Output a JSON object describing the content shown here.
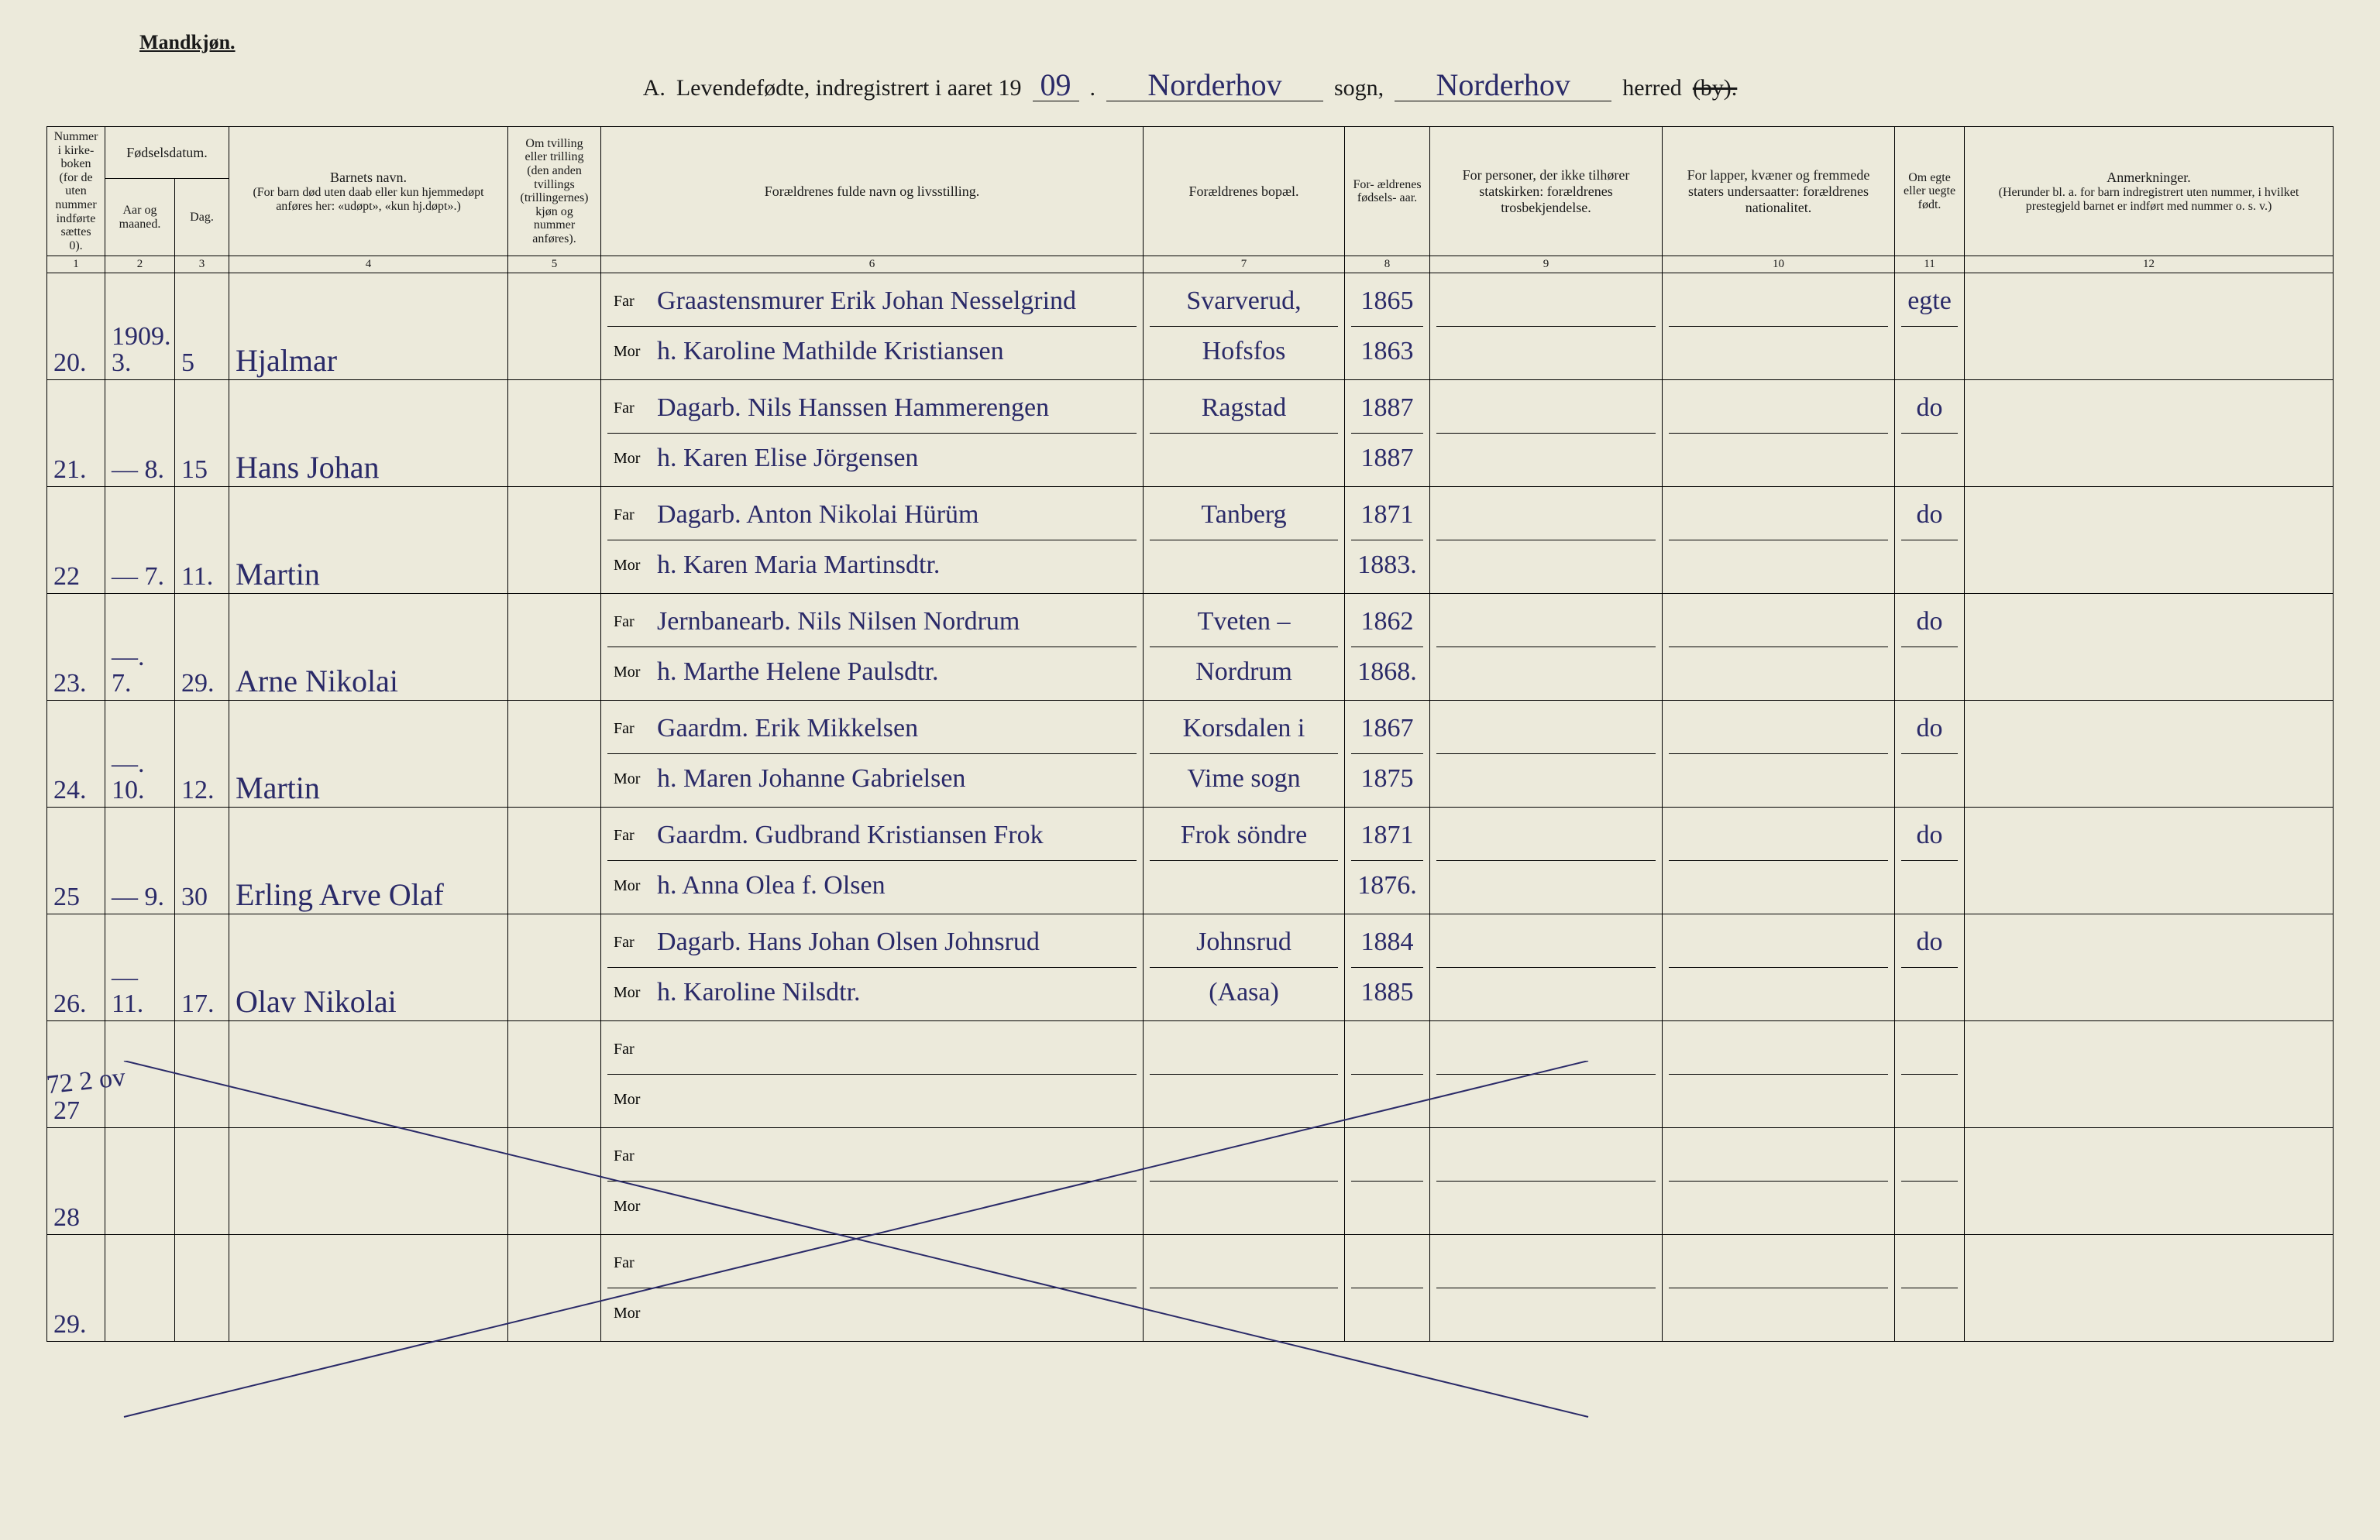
{
  "colors": {
    "paper": "#eceadb",
    "ink_printed": "#1a1a1a",
    "ink_handwritten": "#2a2a68",
    "rule": "#000000"
  },
  "gender_label": "Mandkjøn.",
  "title": {
    "prefix": "A.",
    "main": "Levendefødte, indregistrert i aaret 19",
    "year_hand": "09",
    "period": ".",
    "sogn_hand": "Norderhov",
    "sogn_label": "sogn,",
    "herred_hand": "Norderhov",
    "herred_label": "herred",
    "by_struck": "(by)."
  },
  "header": {
    "col1": "Nummer i kirke- boken (for de uten nummer indførte sættes 0).",
    "fodselsdatum": "Fødselsdatum.",
    "col2": "Aar og maaned.",
    "col3": "Dag.",
    "col4_title": "Barnets navn.",
    "col4_sub": "(For barn død uten daab eller kun hjemmedøpt anføres her: «udøpt», «kun hj.døpt».)",
    "col5": "Om tvilling eller trilling (den anden tvillings (trillingernes) kjøn og nummer anføres).",
    "col6": "Forældrenes fulde navn og livsstilling.",
    "col7": "Forældrenes bopæl.",
    "col8": "For- ældrenes fødsels- aar.",
    "col9": "For personer, der ikke tilhører statskirken: forældrenes trosbekjendelse.",
    "col10": "For lapper, kvæner og fremmede staters undersaatter: forældrenes nationalitet.",
    "col11": "Om egte eller uegte født.",
    "col12_title": "Anmerkninger.",
    "col12_sub": "(Herunder bl. a. for barn indregistrert uten nummer, i hvilket prestegjeld barnet er indført med nummer o. s. v.)",
    "colnums": [
      "1",
      "2",
      "3",
      "4",
      "5",
      "6",
      "7",
      "8",
      "9",
      "10",
      "11",
      "12"
    ],
    "far": "Far",
    "mor": "Mor"
  },
  "rows": [
    {
      "num": "20.",
      "aar": "1909.",
      "mnd": "3.",
      "dag": "5",
      "navn": "Hjalmar",
      "far": "Graastensmurer Erik Johan Nesselgrind",
      "mor": "h. Karoline Mathilde Kristiansen",
      "bopel_far": "Svarverud,",
      "bopel_mor": "Hofsfos",
      "aar_far": "1865",
      "aar_mor": "1863",
      "egte": "egte"
    },
    {
      "num": "21.",
      "aar": "—",
      "mnd": "8.",
      "dag": "15",
      "navn": "Hans Johan",
      "far": "Dagarb. Nils Hanssen Hammerengen",
      "mor": "h. Karen Elise Jörgensen",
      "bopel_far": "Ragstad",
      "bopel_mor": "",
      "aar_far": "1887",
      "aar_mor": "1887",
      "egte": "do"
    },
    {
      "num": "22",
      "aar": "—",
      "mnd": "7.",
      "dag": "11.",
      "navn": "Martin",
      "far": "Dagarb. Anton Nikolai Hürüm",
      "mor": "h. Karen Maria Martinsdtr.",
      "bopel_far": "Tanberg",
      "bopel_mor": "",
      "aar_far": "1871",
      "aar_mor": "1883.",
      "egte": "do"
    },
    {
      "num": "23.",
      "aar": "—.",
      "mnd": "7.",
      "dag": "29.",
      "navn": "Arne Nikolai",
      "far": "Jernbanearb. Nils Nilsen Nordrum",
      "mor": "h. Marthe Helene Paulsdtr.",
      "bopel_far": "Tveten –",
      "bopel_mor": "Nordrum",
      "aar_far": "1862",
      "aar_mor": "1868.",
      "egte": "do"
    },
    {
      "num": "24.",
      "aar": "—.",
      "mnd": "10.",
      "dag": "12.",
      "navn": "Martin",
      "far": "Gaardm. Erik Mikkelsen",
      "mor": "h. Maren Johanne Gabrielsen",
      "bopel_far": "Korsdalen i",
      "bopel_mor": "Vime sogn",
      "aar_far": "1867",
      "aar_mor": "1875",
      "egte": "do"
    },
    {
      "num": "25",
      "aar": "—",
      "mnd": "9.",
      "dag": "30",
      "navn": "Erling Arve Olaf",
      "far": "Gaardm. Gudbrand Kristiansen Frok",
      "mor": "h. Anna Olea f. Olsen",
      "bopel_far": "Frok söndre",
      "bopel_mor": "",
      "aar_far": "1871",
      "aar_mor": "1876.",
      "egte": "do"
    },
    {
      "num": "26.",
      "aar": "—",
      "mnd": "11.",
      "dag": "17.",
      "navn": "Olav Nikolai",
      "far": "Dagarb. Hans Johan Olsen Johnsrud",
      "mor": "h. Karoline Nilsdtr.",
      "bopel_far": "Johnsrud",
      "bopel_mor": "(Aasa)",
      "aar_far": "1884",
      "aar_mor": "1885",
      "egte": "do"
    },
    {
      "num": "27",
      "blank": true
    },
    {
      "num": "28",
      "blank": true
    },
    {
      "num": "29.",
      "blank": true
    }
  ],
  "margin_note": "72 2 ov",
  "diagonal": {
    "x1a": 60,
    "y1a": 0,
    "x2a": 1950,
    "y2a": 460,
    "x1b": 60,
    "y1b": 460,
    "x2b": 1950,
    "y2b": 0
  }
}
